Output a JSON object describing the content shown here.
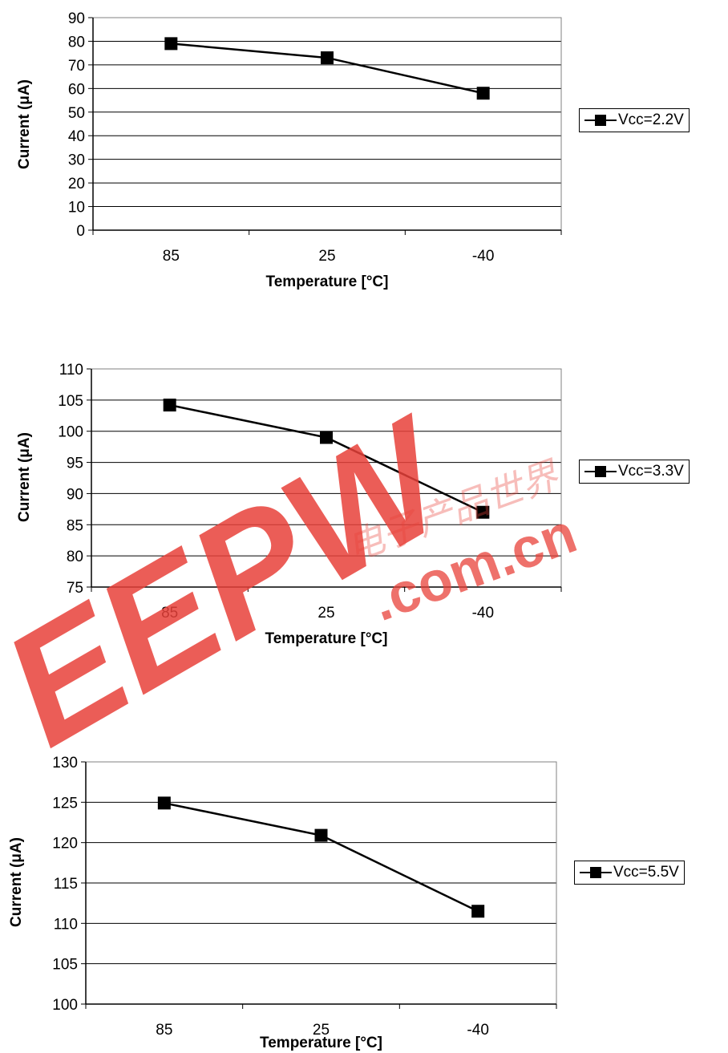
{
  "chart_data": [
    {
      "type": "line",
      "categories": [
        "85",
        "25",
        "-40"
      ],
      "series": [
        {
          "name": "Vcc=2.2V",
          "values": [
            79,
            73,
            58
          ]
        }
      ],
      "ylabel": "Current (μA)",
      "xlabel": "Temperature [°C]",
      "ylim": [
        0,
        90
      ],
      "yticks": [
        0,
        10,
        20,
        30,
        40,
        50,
        60,
        70,
        80,
        90
      ],
      "grid": true,
      "legend_position": "right"
    },
    {
      "type": "line",
      "categories": [
        "85",
        "25",
        "-40"
      ],
      "series": [
        {
          "name": "Vcc=3.3V",
          "values": [
            104.2,
            99,
            87
          ]
        }
      ],
      "ylabel": "Current (μA)",
      "xlabel": "Temperature [°C]",
      "ylim": [
        75,
        110
      ],
      "yticks": [
        75,
        80,
        85,
        90,
        95,
        100,
        105,
        110
      ],
      "grid": true,
      "legend_position": "right"
    },
    {
      "type": "line",
      "categories": [
        "85",
        "25",
        "-40"
      ],
      "series": [
        {
          "name": "Vcc=5.5V",
          "values": [
            124.9,
            120.9,
            111.5
          ]
        }
      ],
      "ylabel": "Current (μA)",
      "xlabel": "Temperature [°C]",
      "ylim": [
        100,
        130
      ],
      "yticks": [
        100,
        105,
        110,
        115,
        120,
        125,
        130
      ],
      "grid": true,
      "legend_position": "right"
    }
  ],
  "watermark": {
    "logo_text": "EEPW",
    "chinese_text": "电子产品世界",
    "domain_text": ".com.cn",
    "color": "#e8413a"
  }
}
